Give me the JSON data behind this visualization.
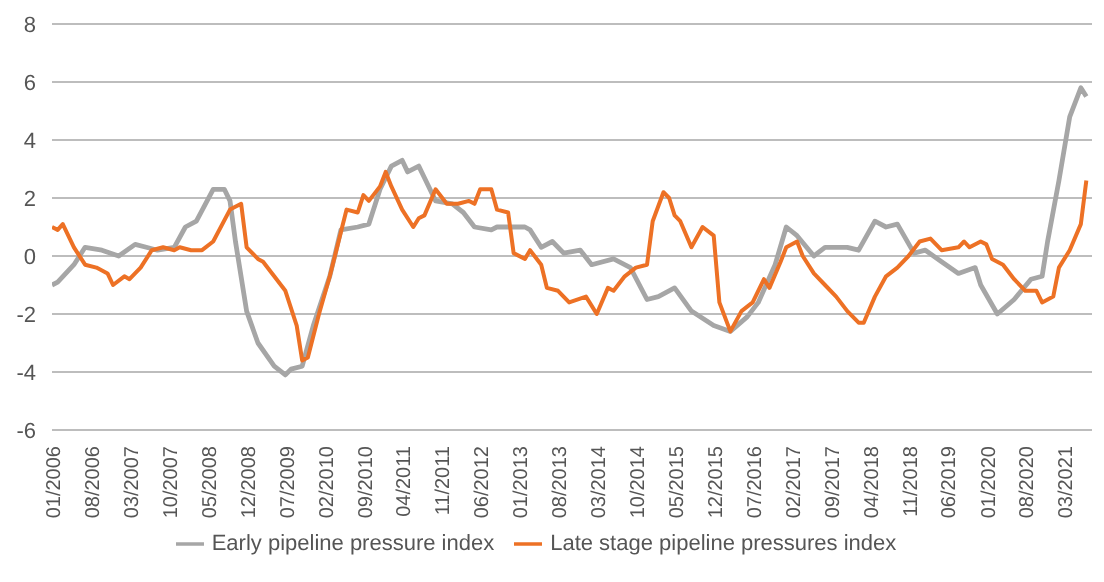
{
  "chart_data": {
    "type": "line",
    "ylim": [
      -6,
      8
    ],
    "yticks": [
      -6,
      -4,
      -2,
      0,
      2,
      4,
      6,
      8
    ],
    "xlim": [
      "2006-01",
      "2021-08"
    ],
    "xticks": [
      {
        "value": "2006-01",
        "label": "01/2006"
      },
      {
        "value": "2006-08",
        "label": "08/2006"
      },
      {
        "value": "2007-03",
        "label": "03/2007"
      },
      {
        "value": "2007-10",
        "label": "10/2007"
      },
      {
        "value": "2008-05",
        "label": "05/2008"
      },
      {
        "value": "2008-12",
        "label": "12/2008"
      },
      {
        "value": "2009-07",
        "label": "07/2009"
      },
      {
        "value": "2010-02",
        "label": "02/2010"
      },
      {
        "value": "2010-09",
        "label": "09/2010"
      },
      {
        "value": "2011-04",
        "label": "04/2011"
      },
      {
        "value": "2011-11",
        "label": "11/2011"
      },
      {
        "value": "2012-06",
        "label": "06/2012"
      },
      {
        "value": "2013-01",
        "label": "01/2013"
      },
      {
        "value": "2013-08",
        "label": "08/2013"
      },
      {
        "value": "2014-03",
        "label": "03/2014"
      },
      {
        "value": "2014-10",
        "label": "10/2014"
      },
      {
        "value": "2015-05",
        "label": "05/2015"
      },
      {
        "value": "2015-12",
        "label": "12/2015"
      },
      {
        "value": "2016-07",
        "label": "07/2016"
      },
      {
        "value": "2017-02",
        "label": "02/2017"
      },
      {
        "value": "2017-09",
        "label": "09/2017"
      },
      {
        "value": "2018-04",
        "label": "04/2018"
      },
      {
        "value": "2018-11",
        "label": "11/2018"
      },
      {
        "value": "2019-06",
        "label": "06/2019"
      },
      {
        "value": "2020-01",
        "label": "01/2020"
      },
      {
        "value": "2020-08",
        "label": "08/2020"
      },
      {
        "value": "2021-03",
        "label": "03/2021"
      }
    ],
    "grid": "y",
    "legend": "bottom",
    "series": [
      {
        "name": "Early pipeline pressure index",
        "color": "#a6a6a6",
        "x": [
          "2006-01",
          "2006-02",
          "2006-05",
          "2006-07",
          "2006-10",
          "2007-01",
          "2007-04",
          "2007-06",
          "2007-08",
          "2007-11",
          "2008-01",
          "2008-03",
          "2008-06",
          "2008-08",
          "2008-09",
          "2008-10",
          "2008-12",
          "2009-02",
          "2009-05",
          "2009-07",
          "2009-08",
          "2009-10",
          "2009-12",
          "2010-03",
          "2010-05",
          "2010-08",
          "2010-10",
          "2010-12",
          "2011-02",
          "2011-04",
          "2011-05",
          "2011-07",
          "2011-08",
          "2011-10",
          "2012-01",
          "2012-03",
          "2012-05",
          "2012-08",
          "2012-09",
          "2012-11",
          "2013-02",
          "2013-03",
          "2013-05",
          "2013-07",
          "2013-09",
          "2013-12",
          "2014-02",
          "2014-06",
          "2014-09",
          "2014-12",
          "2015-02",
          "2015-05",
          "2015-08",
          "2015-12",
          "2016-03",
          "2016-06",
          "2016-08",
          "2016-11",
          "2017-01",
          "2017-03",
          "2017-06",
          "2017-08",
          "2017-12",
          "2018-02",
          "2018-05",
          "2018-07",
          "2018-09",
          "2018-12",
          "2019-02",
          "2019-05",
          "2019-08",
          "2019-11",
          "2019-12",
          "2020-03",
          "2020-06",
          "2020-09",
          "2020-11",
          "2020-12",
          "2021-02",
          "2021-04",
          "2021-06",
          "2021-07"
        ],
        "values": [
          -1.0,
          -0.9,
          -0.3,
          0.3,
          0.2,
          0.0,
          0.4,
          0.3,
          0.2,
          0.3,
          1.0,
          1.2,
          2.3,
          2.3,
          1.9,
          0.5,
          -1.9,
          -3.0,
          -3.8,
          -4.1,
          -3.9,
          -3.8,
          -2.4,
          -0.7,
          0.9,
          1.0,
          1.1,
          2.3,
          3.1,
          3.3,
          2.9,
          3.1,
          2.7,
          1.9,
          1.8,
          1.5,
          1.0,
          0.9,
          1.0,
          1.0,
          1.0,
          0.9,
          0.3,
          0.5,
          0.1,
          0.2,
          -0.3,
          -0.1,
          -0.4,
          -1.5,
          -1.4,
          -1.1,
          -1.9,
          -2.4,
          -2.6,
          -2.1,
          -1.6,
          -0.3,
          1.0,
          0.7,
          0.0,
          0.3,
          0.3,
          0.2,
          1.2,
          1.0,
          1.1,
          0.1,
          0.2,
          -0.2,
          -0.6,
          -0.4,
          -1.0,
          -2.0,
          -1.5,
          -0.8,
          -0.7,
          0.5,
          2.6,
          4.8,
          5.8,
          5.5
        ]
      },
      {
        "name": "Late stage pipeline pressures index",
        "color": "#ed7125",
        "x": [
          "2006-01",
          "2006-02",
          "2006-03",
          "2006-05",
          "2006-07",
          "2006-09",
          "2006-11",
          "2006-12",
          "2007-02",
          "2007-03",
          "2007-05",
          "2007-07",
          "2007-09",
          "2007-11",
          "2007-12",
          "2008-02",
          "2008-04",
          "2008-06",
          "2008-09",
          "2008-11",
          "2008-12",
          "2009-02",
          "2009-03",
          "2009-05",
          "2009-07",
          "2009-09",
          "2009-10",
          "2009-11",
          "2010-01",
          "2010-03",
          "2010-06",
          "2010-08",
          "2010-09",
          "2010-10",
          "2010-12",
          "2011-01",
          "2011-02",
          "2011-04",
          "2011-06",
          "2011-07",
          "2011-08",
          "2011-10",
          "2011-12",
          "2012-02",
          "2012-04",
          "2012-05",
          "2012-06",
          "2012-08",
          "2012-09",
          "2012-11",
          "2012-12",
          "2013-02",
          "2013-03",
          "2013-05",
          "2013-06",
          "2013-08",
          "2013-10",
          "2014-01",
          "2014-03",
          "2014-05",
          "2014-06",
          "2014-08",
          "2014-10",
          "2014-12",
          "2015-01",
          "2015-03",
          "2015-04",
          "2015-05",
          "2015-06",
          "2015-08",
          "2015-10",
          "2015-12",
          "2016-01",
          "2016-03",
          "2016-05",
          "2016-07",
          "2016-09",
          "2016-10",
          "2016-12",
          "2017-01",
          "2017-03",
          "2017-04",
          "2017-06",
          "2017-08",
          "2017-10",
          "2017-12",
          "2018-02",
          "2018-03",
          "2018-05",
          "2018-07",
          "2018-09",
          "2018-11",
          "2019-01",
          "2019-03",
          "2019-05",
          "2019-08",
          "2019-09",
          "2019-10",
          "2019-12",
          "2020-01",
          "2020-02",
          "2020-04",
          "2020-06",
          "2020-08",
          "2020-10",
          "2020-11",
          "2021-01",
          "2021-02",
          "2021-04",
          "2021-06",
          "2021-07"
        ],
        "values": [
          1.0,
          0.9,
          1.1,
          0.3,
          -0.3,
          -0.4,
          -0.6,
          -1.0,
          -0.7,
          -0.8,
          -0.4,
          0.2,
          0.3,
          0.2,
          0.3,
          0.2,
          0.2,
          0.5,
          1.6,
          1.8,
          0.3,
          -0.1,
          -0.2,
          -0.7,
          -1.2,
          -2.4,
          -3.6,
          -3.5,
          -2.0,
          -0.7,
          1.6,
          1.5,
          2.1,
          1.9,
          2.4,
          2.9,
          2.4,
          1.6,
          1.0,
          1.3,
          1.4,
          2.3,
          1.8,
          1.8,
          1.9,
          1.8,
          2.3,
          2.3,
          1.6,
          1.5,
          0.1,
          -0.1,
          0.2,
          -0.3,
          -1.1,
          -1.2,
          -1.6,
          -1.4,
          -2.0,
          -1.1,
          -1.2,
          -0.7,
          -0.4,
          -0.3,
          1.2,
          2.2,
          2.0,
          1.4,
          1.2,
          0.3,
          1.0,
          0.7,
          -1.6,
          -2.6,
          -1.9,
          -1.6,
          -0.8,
          -1.1,
          -0.2,
          0.3,
          0.5,
          0.0,
          -0.6,
          -1.0,
          -1.4,
          -1.9,
          -2.3,
          -2.3,
          -1.4,
          -0.7,
          -0.4,
          0.0,
          0.5,
          0.6,
          0.2,
          0.3,
          0.5,
          0.3,
          0.5,
          0.4,
          -0.1,
          -0.3,
          -0.8,
          -1.2,
          -1.2,
          -1.6,
          -1.4,
          -0.4,
          0.2,
          1.1,
          2.6
        ]
      }
    ]
  }
}
